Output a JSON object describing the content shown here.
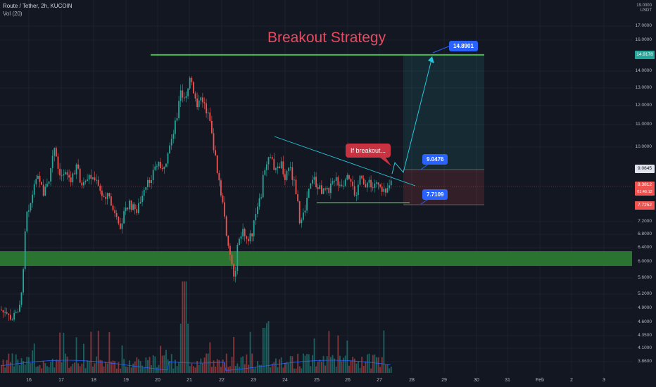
{
  "header": {
    "symbol_line": "Route / Tether, 2h, KUCOIN",
    "volume_line": "Vol (20)"
  },
  "annotations": {
    "title": "Breakout Strategy",
    "if_breakout": "If breakout...",
    "target_top": "14.8901",
    "target_mid": "9.0476",
    "target_low": "7.7109"
  },
  "price_axis": {
    "unit": "USDT",
    "top_partial": "19.0000",
    "ticks": [
      "17.0000",
      "16.0000",
      "14.0000",
      "13.0000",
      "12.0000",
      "11.0000",
      "10.0000",
      "7.2000",
      "6.8000",
      "6.4000",
      "6.0000",
      "5.6000",
      "5.2000",
      "4.9000",
      "4.6000",
      "4.3500",
      "4.1000",
      "3.8600"
    ],
    "badges": {
      "resistance": "14.9178",
      "entry": "9.0645",
      "last_price": "8.3812",
      "countdown": "01:46:12",
      "stop": "7.7252"
    }
  },
  "time_axis": {
    "ticks": [
      "16",
      "17",
      "18",
      "19",
      "20",
      "21",
      "22",
      "23",
      "24",
      "25",
      "26",
      "27",
      "28",
      "29",
      "30",
      "31",
      "Feb",
      "2",
      "3"
    ]
  },
  "colors": {
    "up": "#26a69a",
    "down": "#ef5350",
    "support_zone": "#2e7d32",
    "resistance_line": "#4caf50",
    "trendline": "#26c6da",
    "label_blue": "#2962ff",
    "label_red": "#c83241",
    "title": "#e84a5f"
  }
}
